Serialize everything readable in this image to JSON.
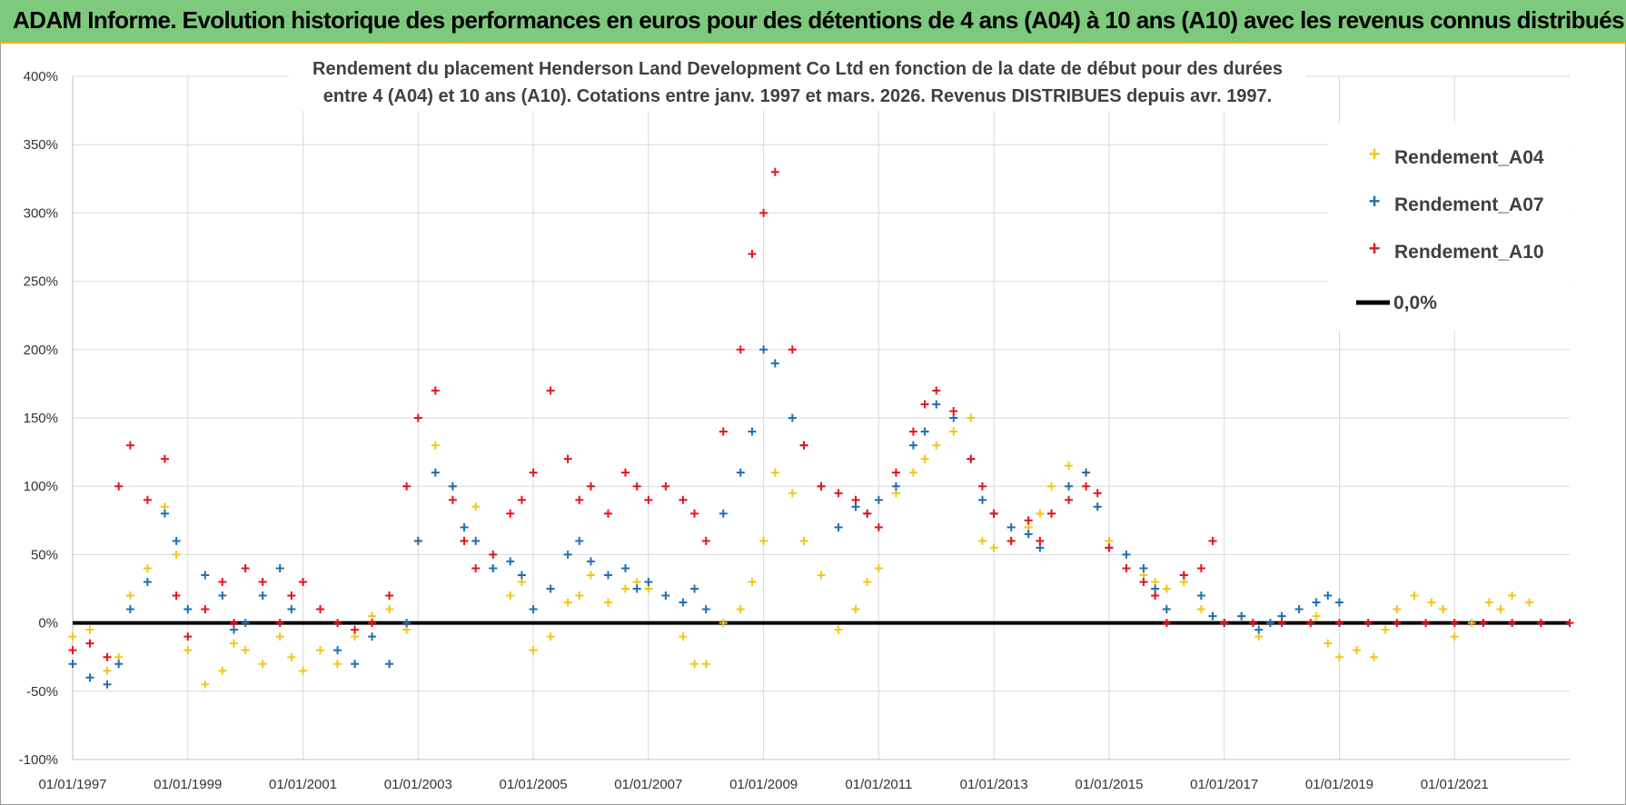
{
  "header": {
    "title": "ADAM Informe. Evolution historique des performances en euros pour des détentions de 4 ans (A04) à 10 ans (A10) avec les revenus connus distribués"
  },
  "chart_data": {
    "type": "scatter",
    "title_lines": [
      "Rendement du placement Henderson Land Development Co Ltd en fonction de la date de début pour des durées",
      "entre 4 (A04) et 10 ans (A10). Cotations entre janv. 1997 et mars. 2026. Revenus DISTRIBUES depuis avr. 1997."
    ],
    "xlabel": "",
    "ylabel": "",
    "xlim": [
      1997.0,
      2023.0
    ],
    "ylim": [
      -100,
      400
    ],
    "x_ticks": [
      1997,
      1999,
      2001,
      2003,
      2005,
      2007,
      2009,
      2011,
      2013,
      2015,
      2017,
      2019,
      2021
    ],
    "x_tick_labels": [
      "01/01/1997",
      "01/01/1999",
      "01/01/2001",
      "01/01/2003",
      "01/01/2005",
      "01/01/2007",
      "01/01/2009",
      "01/01/2011",
      "01/01/2013",
      "01/01/2015",
      "01/01/2017",
      "01/01/2019",
      "01/01/2021"
    ],
    "y_ticks": [
      -100,
      -50,
      0,
      50,
      100,
      150,
      200,
      250,
      300,
      350,
      400
    ],
    "y_tick_labels": [
      "-100%",
      "-50%",
      "0%",
      "50%",
      "100%",
      "150%",
      "200%",
      "250%",
      "300%",
      "350%",
      "400%"
    ],
    "grid": true,
    "legend_position": "top-right",
    "series": [
      {
        "name": "Rendement_A04",
        "color": "#f5c518",
        "marker": "plus",
        "x": [
          1997.0,
          1997.3,
          1997.6,
          1997.8,
          1998.0,
          1998.3,
          1998.6,
          1998.8,
          1999.0,
          1999.3,
          1999.6,
          1999.8,
          2000.0,
          2000.3,
          2000.6,
          2000.8,
          2001.0,
          2001.3,
          2001.6,
          2001.9,
          2002.2,
          2002.5,
          2002.8,
          2003.0,
          2003.3,
          2003.6,
          2003.8,
          2004.0,
          2004.3,
          2004.6,
          2004.8,
          2005.0,
          2005.3,
          2005.6,
          2005.8,
          2006.0,
          2006.3,
          2006.6,
          2006.8,
          2007.0,
          2007.3,
          2007.6,
          2007.8,
          2008.0,
          2008.3,
          2008.6,
          2008.8,
          2009.0,
          2009.2,
          2009.5,
          2009.7,
          2010.0,
          2010.3,
          2010.6,
          2010.8,
          2011.0,
          2011.3,
          2011.6,
          2011.8,
          2012.0,
          2012.3,
          2012.6,
          2012.8,
          2013.0,
          2013.3,
          2013.6,
          2013.8,
          2014.0,
          2014.3,
          2014.6,
          2014.8,
          2015.0,
          2015.3,
          2015.6,
          2015.8,
          2016.0,
          2016.3,
          2016.6,
          2016.8,
          2017.0,
          2017.3,
          2017.6,
          2017.8,
          2018.0,
          2018.3,
          2018.6,
          2018.8,
          2019.0,
          2019.3,
          2019.6,
          2019.8,
          2020.0,
          2020.3,
          2020.6,
          2020.8,
          2021.0,
          2021.3,
          2021.6,
          2021.8,
          2022.0,
          2022.3
        ],
        "values": [
          -10,
          -5,
          -35,
          -25,
          20,
          40,
          85,
          50,
          -20,
          -45,
          -35,
          -15,
          -20,
          -30,
          -10,
          -25,
          -35,
          -20,
          -30,
          -10,
          5,
          10,
          -5,
          60,
          130,
          100,
          60,
          85,
          40,
          20,
          30,
          -20,
          -10,
          15,
          20,
          35,
          15,
          25,
          30,
          25,
          20,
          -10,
          -30,
          -30,
          0,
          10,
          30,
          60,
          110,
          95,
          60,
          35,
          -5,
          10,
          30,
          40,
          95,
          110,
          120,
          130,
          140,
          150,
          60,
          55,
          60,
          70,
          80,
          100,
          115,
          110,
          85,
          60,
          40,
          35,
          30,
          25,
          30,
          10,
          5,
          0,
          5,
          -10,
          0,
          5,
          10,
          5,
          -15,
          -25,
          -20,
          -25,
          -5,
          10,
          20,
          15,
          10,
          -10,
          0,
          15,
          10,
          20,
          15
        ]
      },
      {
        "name": "Rendement_A07",
        "color": "#1f6fb5",
        "marker": "plus",
        "x": [
          1997.0,
          1997.3,
          1997.6,
          1997.8,
          1998.0,
          1998.3,
          1998.6,
          1998.8,
          1999.0,
          1999.3,
          1999.6,
          1999.8,
          2000.0,
          2000.3,
          2000.6,
          2000.8,
          2001.0,
          2001.3,
          2001.6,
          2001.9,
          2002.2,
          2002.5,
          2002.8,
          2003.0,
          2003.3,
          2003.6,
          2003.8,
          2004.0,
          2004.3,
          2004.6,
          2004.8,
          2005.0,
          2005.3,
          2005.6,
          2005.8,
          2006.0,
          2006.3,
          2006.6,
          2006.8,
          2007.0,
          2007.3,
          2007.6,
          2007.8,
          2008.0,
          2008.3,
          2008.6,
          2008.8,
          2009.0,
          2009.2,
          2009.5,
          2009.7,
          2010.0,
          2010.3,
          2010.6,
          2010.8,
          2011.0,
          2011.3,
          2011.6,
          2011.8,
          2012.0,
          2012.3,
          2012.6,
          2012.8,
          2013.0,
          2013.3,
          2013.6,
          2013.8,
          2014.0,
          2014.3,
          2014.6,
          2014.8,
          2015.0,
          2015.3,
          2015.6,
          2015.8,
          2016.0,
          2016.3,
          2016.6,
          2016.8,
          2017.0,
          2017.3,
          2017.6,
          2017.8,
          2018.0,
          2018.3,
          2018.6,
          2018.8,
          2019.0
        ],
        "values": [
          -30,
          -40,
          -45,
          -30,
          10,
          30,
          80,
          60,
          10,
          35,
          20,
          -5,
          0,
          20,
          40,
          10,
          30,
          10,
          -20,
          -30,
          -10,
          -30,
          0,
          60,
          110,
          100,
          70,
          60,
          40,
          45,
          35,
          10,
          25,
          50,
          60,
          45,
          35,
          40,
          25,
          30,
          20,
          15,
          25,
          10,
          80,
          110,
          140,
          200,
          190,
          150,
          130,
          100,
          70,
          85,
          80,
          90,
          100,
          130,
          140,
          160,
          150,
          120,
          90,
          80,
          70,
          65,
          55,
          80,
          100,
          110,
          85,
          55,
          50,
          40,
          25,
          10,
          35,
          20,
          5,
          0,
          5,
          -5,
          0,
          5,
          10,
          15,
          20,
          15
        ]
      },
      {
        "name": "Rendement_A10",
        "color": "#e8141a",
        "marker": "plus",
        "x": [
          1997.0,
          1997.3,
          1997.6,
          1997.8,
          1998.0,
          1998.3,
          1998.6,
          1998.8,
          1999.0,
          1999.3,
          1999.6,
          1999.8,
          2000.0,
          2000.3,
          2000.6,
          2000.8,
          2001.0,
          2001.3,
          2001.6,
          2001.9,
          2002.2,
          2002.5,
          2002.8,
          2003.0,
          2003.3,
          2003.6,
          2003.8,
          2004.0,
          2004.3,
          2004.6,
          2004.8,
          2005.0,
          2005.3,
          2005.6,
          2005.8,
          2006.0,
          2006.3,
          2006.6,
          2006.8,
          2007.0,
          2007.3,
          2007.6,
          2007.8,
          2008.0,
          2008.3,
          2008.6,
          2008.8,
          2009.0,
          2009.2,
          2009.5,
          2009.7,
          2010.0,
          2010.3,
          2010.6,
          2010.8,
          2011.0,
          2011.3,
          2011.6,
          2011.8,
          2012.0,
          2012.3,
          2012.6,
          2012.8,
          2013.0,
          2013.3,
          2013.6,
          2013.8,
          2014.0,
          2014.3,
          2014.6,
          2014.8,
          2015.0,
          2015.3,
          2015.6,
          2015.8,
          2016.0,
          2016.3,
          2016.6,
          2016.8,
          2017.0,
          2017.5,
          2018.0,
          2018.5,
          2019.0,
          2019.5,
          2020.0,
          2020.5,
          2021.0,
          2021.5,
          2022.0,
          2022.5,
          2023.0
        ],
        "values": [
          -20,
          -15,
          -25,
          100,
          130,
          90,
          120,
          20,
          -10,
          10,
          30,
          0,
          40,
          30,
          0,
          20,
          30,
          10,
          0,
          -5,
          0,
          20,
          100,
          150,
          170,
          90,
          60,
          40,
          50,
          80,
          90,
          110,
          170,
          120,
          90,
          100,
          80,
          110,
          100,
          90,
          100,
          90,
          80,
          60,
          140,
          200,
          270,
          300,
          330,
          200,
          130,
          100,
          95,
          90,
          80,
          70,
          110,
          140,
          160,
          170,
          155,
          120,
          100,
          80,
          60,
          75,
          60,
          80,
          90,
          100,
          95,
          55,
          40,
          30,
          20,
          0,
          35,
          40,
          60,
          0,
          0,
          0,
          0,
          0,
          0,
          0,
          0,
          0,
          0,
          0,
          0,
          0
        ]
      }
    ],
    "reference_line": {
      "name": "0,0%",
      "y": 0,
      "color": "#000000"
    }
  }
}
